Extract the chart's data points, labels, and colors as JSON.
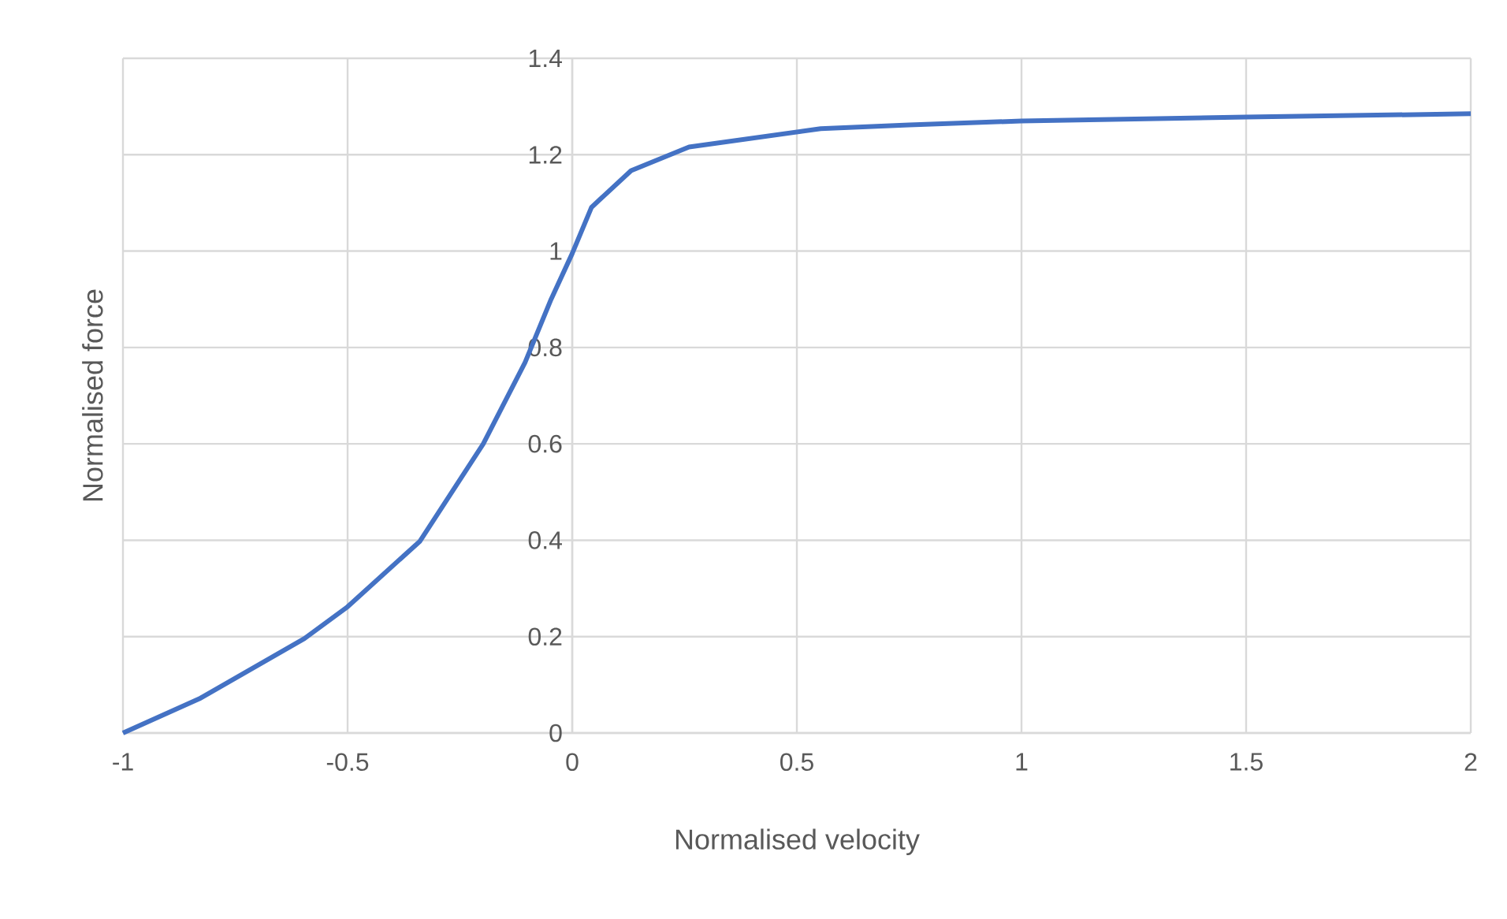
{
  "chart_data": {
    "type": "line",
    "xlabel": "Normalised velocity",
    "ylabel": "Normalised force",
    "series": [
      {
        "color": "#4472c4",
        "x": [
          -1,
          -0.83,
          -0.596,
          -0.5,
          -0.339,
          -0.198,
          -0.105,
          -0.047,
          0,
          0.043,
          0.131,
          0.26,
          0.553,
          0.75,
          1,
          1.5,
          2
        ],
        "values": [
          0,
          0.071,
          0.196,
          0.262,
          0.398,
          0.6,
          0.769,
          0.9,
          0.995,
          1.091,
          1.167,
          1.216,
          1.254,
          1.262,
          1.27,
          1.278,
          1.285
        ]
      }
    ],
    "xlim": [
      -1,
      2
    ],
    "ylim": [
      0,
      1.4
    ],
    "xticks": [
      -1,
      -0.5,
      0,
      0.5,
      1,
      1.5,
      2
    ],
    "yticks": [
      0,
      0.2,
      0.4,
      0.6,
      0.8,
      1,
      1.2,
      1.4
    ],
    "grid": true
  }
}
